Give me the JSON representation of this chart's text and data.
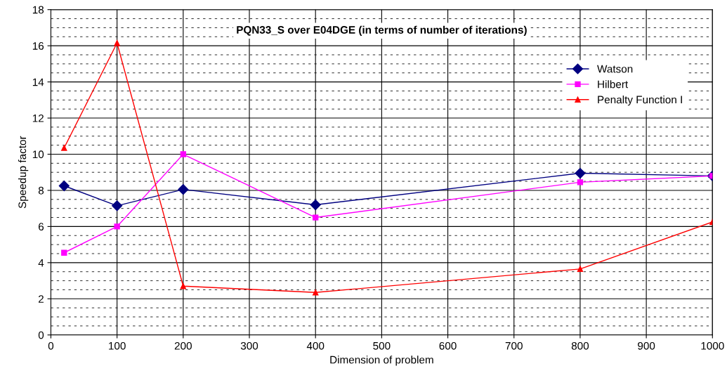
{
  "chart_data": {
    "type": "line",
    "title": "PQN33_S over E04DGE (in terms of number of iterations)",
    "xlabel": "Dimension of problem",
    "ylabel": "Speedup factor",
    "x": [
      20,
      100,
      200,
      400,
      800,
      1000
    ],
    "series": [
      {
        "name": "Watson",
        "color": "#000080",
        "marker": "diamond",
        "values": [
          8.25,
          7.15,
          8.05,
          7.2,
          8.95,
          8.8
        ]
      },
      {
        "name": "Hilbert",
        "color": "#ff00ff",
        "marker": "square",
        "values": [
          4.55,
          6.0,
          10.0,
          6.5,
          8.45,
          8.8
        ]
      },
      {
        "name": "Penalty Function I",
        "color": "#ff0000",
        "marker": "triangle",
        "values": [
          10.35,
          16.15,
          2.7,
          2.35,
          3.65,
          6.25
        ]
      }
    ],
    "xlim": [
      0,
      1000
    ],
    "xticks": [
      0,
      100,
      200,
      300,
      400,
      500,
      600,
      700,
      800,
      900,
      1000
    ],
    "ylim": [
      0,
      18
    ],
    "yticks": [
      0,
      2,
      4,
      6,
      8,
      10,
      12,
      14,
      16,
      18
    ],
    "grid": true,
    "legend": "top right",
    "line_style": "solid"
  }
}
